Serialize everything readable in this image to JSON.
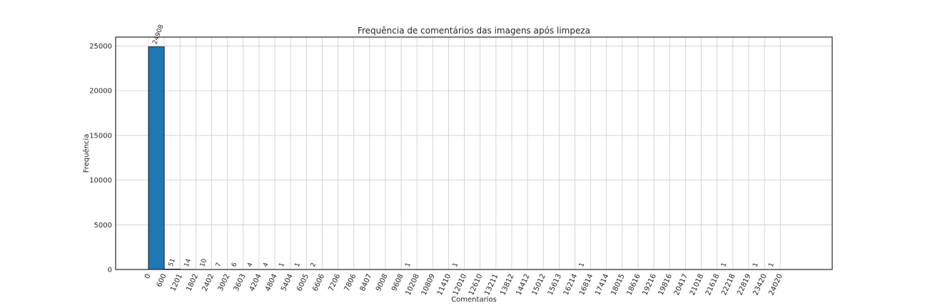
{
  "chart_data": {
    "type": "bar",
    "title": "Frequência de comentários das imagens após limpeza",
    "xlabel": "Comentarios",
    "ylabel": "Frequência",
    "ylim": [
      0,
      26000
    ],
    "yticks": [
      0,
      5000,
      10000,
      15000,
      20000,
      25000
    ],
    "grid": true,
    "bar_color": "#1f77b4",
    "bar_edge_color": "#000000",
    "categories": [
      "0",
      "600",
      "1201",
      "1802",
      "2402",
      "3002",
      "3603",
      "4204",
      "4804",
      "5404",
      "6005",
      "6606",
      "7206",
      "7806",
      "8407",
      "9008",
      "9608",
      "10208",
      "10809",
      "11410",
      "12010",
      "12610",
      "13211",
      "13812",
      "14412",
      "15012",
      "15613",
      "16214",
      "16814",
      "17414",
      "18015",
      "18616",
      "19216",
      "19816",
      "20417",
      "21018",
      "21618",
      "22218",
      "22819",
      "23420",
      "24020"
    ],
    "values": [
      24908,
      51,
      14,
      10,
      7,
      6,
      4,
      4,
      1,
      1,
      2,
      0,
      0,
      0,
      0,
      0,
      1,
      0,
      0,
      1,
      0,
      0,
      0,
      0,
      0,
      0,
      0,
      1,
      0,
      0,
      0,
      0,
      0,
      0,
      0,
      0,
      1,
      0,
      1,
      1,
      0
    ],
    "data_labels": [
      "24908",
      "51",
      "14",
      "10",
      "7",
      "6",
      "4",
      "4",
      "1",
      "1",
      "2",
      "",
      "",
      "",
      "",
      "",
      "1",
      "",
      "",
      "1",
      "",
      "",
      "",
      "",
      "",
      "",
      "",
      "1",
      "",
      "",
      "",
      "",
      "",
      "",
      "",
      "",
      "1",
      "",
      "1",
      "1",
      ""
    ]
  }
}
